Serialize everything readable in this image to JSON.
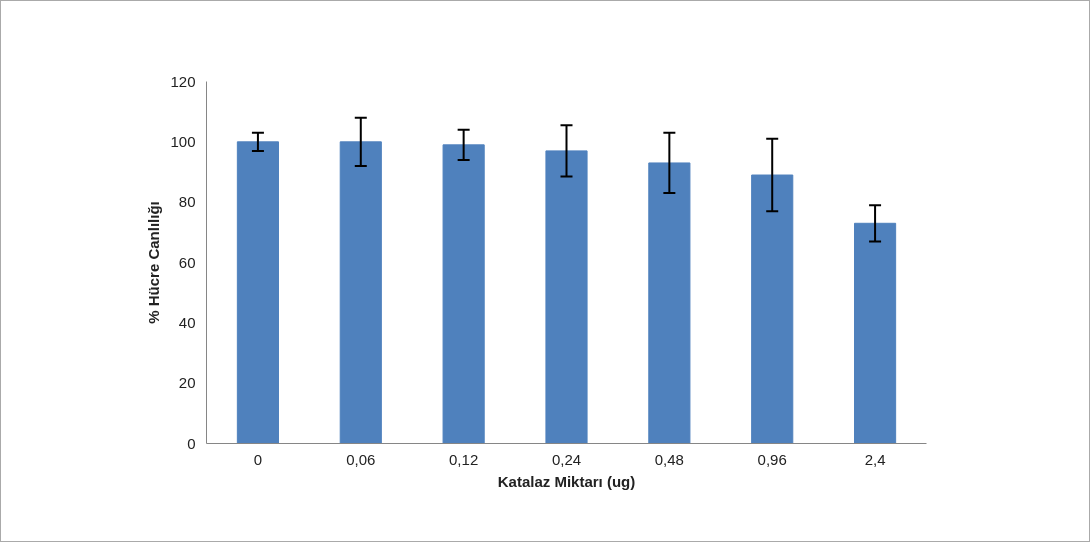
{
  "chart_data": {
    "type": "bar",
    "xlabel": "Katalaz Miktarı (ug)",
    "ylabel": "% Hücre Canlılığı",
    "categories": [
      "0",
      "0,06",
      "0,12",
      "0,24",
      "0,48",
      "0,96",
      "2,4"
    ],
    "values": [
      100,
      100,
      99,
      97,
      93,
      89,
      73
    ],
    "errors": [
      3,
      8,
      5,
      8.5,
      10,
      12,
      6
    ],
    "color": "#4f81bd",
    "ylim": [
      0,
      120
    ],
    "yticks": [
      0,
      20,
      40,
      60,
      80,
      100,
      120
    ],
    "grid": false
  }
}
